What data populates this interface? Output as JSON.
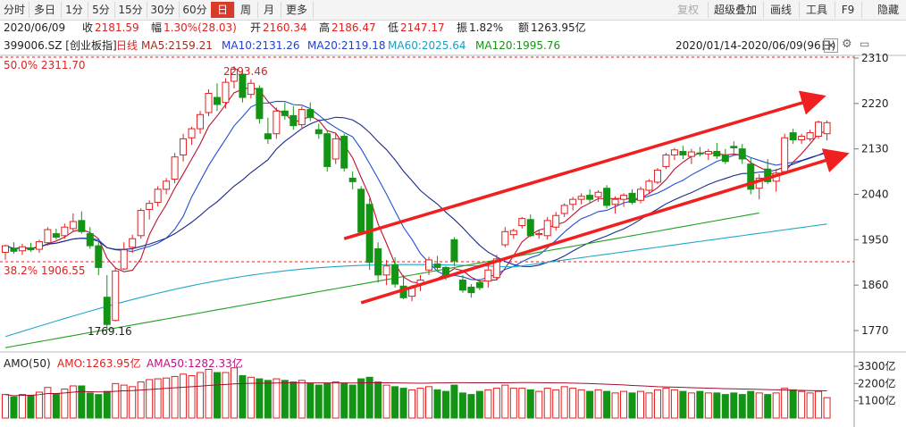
{
  "toolbar": {
    "left": [
      "分时",
      "多日",
      "1分",
      "5分",
      "15分",
      "30分",
      "60分",
      "日",
      "周",
      "月",
      "更多"
    ],
    "active": "日",
    "right": [
      "复权",
      "超级叠加",
      "画线",
      "工具",
      "F9",
      "隐藏"
    ]
  },
  "quote": {
    "date": "2020/06/09",
    "close_label": "收",
    "close": "2181.59",
    "change_label": "幅",
    "change": "1.30%(28.03)",
    "open_label": "开",
    "open": "2160.34",
    "high_label": "高",
    "high": "2186.47",
    "low_label": "低",
    "low": "2147.17",
    "swing_label": "振",
    "swing": "1.82%",
    "amount_label": "额",
    "amount": "1263.95亿"
  },
  "indicators": {
    "code": "399006.SZ [创业板指]",
    "period": "日线",
    "ma5": "MA5:2159.21",
    "ma10": "MA10:2131.26",
    "ma20": "MA20:2119.18",
    "ma60": "MA60:2025.64",
    "ma120": "MA120:1995.76",
    "range": "2020/01/14-2020/06/09(96日)"
  },
  "annotations": {
    "fib50": "50.0%  2311.70",
    "fib382": "38.2%  1906.55",
    "high_label": "2293.46",
    "low_label": "1769.16"
  },
  "volume_panel": {
    "title": "AMO(50)",
    "amo": "AMO:1263.95亿",
    "ama": "AMA50:1282.33亿",
    "ticks": [
      "3300亿",
      "2200亿",
      "1100亿"
    ]
  },
  "colors": {
    "up": "#e02020",
    "down": "#149414",
    "ma5": "#c01030",
    "ma10": "#2050d0",
    "ma20": "#1a2a8a",
    "ma60": "#20a8c8",
    "ma120": "#20a020",
    "channel": "#f02020"
  },
  "chart_data": {
    "type": "candlestick",
    "y_ticks": [
      2310,
      2220,
      2130,
      2040,
      1950,
      1860,
      1770
    ],
    "candles": [
      {
        "o": 1925,
        "h": 1940,
        "l": 1910,
        "c": 1938
      },
      {
        "o": 1932,
        "h": 1945,
        "l": 1922,
        "c": 1927
      },
      {
        "o": 1928,
        "h": 1942,
        "l": 1920,
        "c": 1936
      },
      {
        "o": 1934,
        "h": 1944,
        "l": 1926,
        "c": 1930
      },
      {
        "o": 1931,
        "h": 1950,
        "l": 1924,
        "c": 1946
      },
      {
        "o": 1944,
        "h": 1975,
        "l": 1938,
        "c": 1970
      },
      {
        "o": 1962,
        "h": 1972,
        "l": 1950,
        "c": 1955
      },
      {
        "o": 1958,
        "h": 1982,
        "l": 1952,
        "c": 1975
      },
      {
        "o": 1972,
        "h": 2002,
        "l": 1966,
        "c": 1986
      },
      {
        "o": 1988,
        "h": 2006,
        "l": 1962,
        "c": 1966
      },
      {
        "o": 1962,
        "h": 1975,
        "l": 1932,
        "c": 1938
      },
      {
        "o": 1938,
        "h": 1946,
        "l": 1880,
        "c": 1895
      },
      {
        "o": 1836,
        "h": 1880,
        "l": 1772,
        "c": 1782
      },
      {
        "o": 1790,
        "h": 1896,
        "l": 1788,
        "c": 1888
      },
      {
        "o": 1892,
        "h": 1945,
        "l": 1890,
        "c": 1930
      },
      {
        "o": 1935,
        "h": 1960,
        "l": 1924,
        "c": 1952
      },
      {
        "o": 1958,
        "h": 2012,
        "l": 1952,
        "c": 2008
      },
      {
        "o": 2010,
        "h": 2028,
        "l": 1990,
        "c": 2022
      },
      {
        "o": 2024,
        "h": 2056,
        "l": 2016,
        "c": 2050
      },
      {
        "o": 2050,
        "h": 2072,
        "l": 2040,
        "c": 2066
      },
      {
        "o": 2070,
        "h": 2122,
        "l": 2062,
        "c": 2114
      },
      {
        "o": 2118,
        "h": 2160,
        "l": 2105,
        "c": 2150
      },
      {
        "o": 2152,
        "h": 2174,
        "l": 2138,
        "c": 2170
      },
      {
        "o": 2170,
        "h": 2205,
        "l": 2160,
        "c": 2198
      },
      {
        "o": 2202,
        "h": 2248,
        "l": 2195,
        "c": 2240
      },
      {
        "o": 2232,
        "h": 2260,
        "l": 2205,
        "c": 2218
      },
      {
        "o": 2222,
        "h": 2270,
        "l": 2210,
        "c": 2262
      },
      {
        "o": 2264,
        "h": 2294,
        "l": 2250,
        "c": 2288
      },
      {
        "o": 2278,
        "h": 2288,
        "l": 2222,
        "c": 2232
      },
      {
        "o": 2238,
        "h": 2268,
        "l": 2230,
        "c": 2260
      },
      {
        "o": 2250,
        "h": 2256,
        "l": 2180,
        "c": 2190
      },
      {
        "o": 2160,
        "h": 2192,
        "l": 2140,
        "c": 2150
      },
      {
        "o": 2160,
        "h": 2212,
        "l": 2150,
        "c": 2205
      },
      {
        "o": 2205,
        "h": 2222,
        "l": 2188,
        "c": 2196
      },
      {
        "o": 2196,
        "h": 2215,
        "l": 2168,
        "c": 2176
      },
      {
        "o": 2178,
        "h": 2214,
        "l": 2172,
        "c": 2208
      },
      {
        "o": 2208,
        "h": 2222,
        "l": 2185,
        "c": 2192
      },
      {
        "o": 2168,
        "h": 2180,
        "l": 2150,
        "c": 2160
      },
      {
        "o": 2160,
        "h": 2166,
        "l": 2085,
        "c": 2095
      },
      {
        "o": 2110,
        "h": 2160,
        "l": 2100,
        "c": 2150
      },
      {
        "o": 2155,
        "h": 2160,
        "l": 2085,
        "c": 2092
      },
      {
        "o": 2072,
        "h": 2085,
        "l": 2050,
        "c": 2065
      },
      {
        "o": 2050,
        "h": 2056,
        "l": 1960,
        "c": 1965
      },
      {
        "o": 2020,
        "h": 2032,
        "l": 1890,
        "c": 1905
      },
      {
        "o": 1932,
        "h": 1945,
        "l": 1865,
        "c": 1880
      },
      {
        "o": 1880,
        "h": 1910,
        "l": 1860,
        "c": 1898
      },
      {
        "o": 1900,
        "h": 1915,
        "l": 1855,
        "c": 1862
      },
      {
        "o": 1858,
        "h": 1880,
        "l": 1832,
        "c": 1835
      },
      {
        "o": 1838,
        "h": 1860,
        "l": 1828,
        "c": 1855
      },
      {
        "o": 1862,
        "h": 1880,
        "l": 1848,
        "c": 1870
      },
      {
        "o": 1890,
        "h": 1916,
        "l": 1880,
        "c": 1910
      },
      {
        "o": 1902,
        "h": 1918,
        "l": 1890,
        "c": 1895
      },
      {
        "o": 1895,
        "h": 1898,
        "l": 1870,
        "c": 1880
      },
      {
        "o": 1950,
        "h": 1955,
        "l": 1898,
        "c": 1908
      },
      {
        "o": 1870,
        "h": 1880,
        "l": 1845,
        "c": 1850
      },
      {
        "o": 1856,
        "h": 1862,
        "l": 1835,
        "c": 1845
      },
      {
        "o": 1865,
        "h": 1872,
        "l": 1850,
        "c": 1855
      },
      {
        "o": 1868,
        "h": 1900,
        "l": 1855,
        "c": 1890
      },
      {
        "o": 1875,
        "h": 1920,
        "l": 1870,
        "c": 1912
      },
      {
        "o": 1940,
        "h": 1975,
        "l": 1935,
        "c": 1966
      },
      {
        "o": 1960,
        "h": 1972,
        "l": 1952,
        "c": 1968
      },
      {
        "o": 1978,
        "h": 1995,
        "l": 1972,
        "c": 1992
      },
      {
        "o": 1990,
        "h": 2000,
        "l": 1955,
        "c": 1958
      },
      {
        "o": 1960,
        "h": 1968,
        "l": 1952,
        "c": 1962
      },
      {
        "o": 1958,
        "h": 1995,
        "l": 1950,
        "c": 1988
      },
      {
        "o": 1975,
        "h": 2005,
        "l": 1968,
        "c": 1998
      },
      {
        "o": 2002,
        "h": 2022,
        "l": 1995,
        "c": 2018
      },
      {
        "o": 2020,
        "h": 2035,
        "l": 2008,
        "c": 2030
      },
      {
        "o": 2030,
        "h": 2042,
        "l": 2020,
        "c": 2036
      },
      {
        "o": 2038,
        "h": 2050,
        "l": 2022,
        "c": 2030
      },
      {
        "o": 2035,
        "h": 2048,
        "l": 2025,
        "c": 2044
      },
      {
        "o": 2052,
        "h": 2058,
        "l": 2012,
        "c": 2018
      },
      {
        "o": 2020,
        "h": 2036,
        "l": 2002,
        "c": 2030
      },
      {
        "o": 2030,
        "h": 2042,
        "l": 2015,
        "c": 2038
      },
      {
        "o": 2042,
        "h": 2050,
        "l": 2020,
        "c": 2024
      },
      {
        "o": 2028,
        "h": 2055,
        "l": 2022,
        "c": 2050
      },
      {
        "o": 2048,
        "h": 2070,
        "l": 2042,
        "c": 2066
      },
      {
        "o": 2064,
        "h": 2092,
        "l": 2060,
        "c": 2088
      },
      {
        "o": 2095,
        "h": 2122,
        "l": 2090,
        "c": 2118
      },
      {
        "o": 2118,
        "h": 2132,
        "l": 2108,
        "c": 2128
      },
      {
        "o": 2125,
        "h": 2136,
        "l": 2110,
        "c": 2118
      },
      {
        "o": 2115,
        "h": 2130,
        "l": 2100,
        "c": 2124
      },
      {
        "o": 2122,
        "h": 2134,
        "l": 2115,
        "c": 2120
      },
      {
        "o": 2120,
        "h": 2130,
        "l": 2108,
        "c": 2125
      },
      {
        "o": 2125,
        "h": 2142,
        "l": 2110,
        "c": 2116
      },
      {
        "o": 2118,
        "h": 2130,
        "l": 2100,
        "c": 2105
      },
      {
        "o": 2135,
        "h": 2145,
        "l": 2120,
        "c": 2132
      },
      {
        "o": 2130,
        "h": 2140,
        "l": 2100,
        "c": 2110
      },
      {
        "o": 2100,
        "h": 2112,
        "l": 2040,
        "c": 2050
      },
      {
        "o": 2052,
        "h": 2080,
        "l": 2030,
        "c": 2072
      },
      {
        "o": 2090,
        "h": 2110,
        "l": 2060,
        "c": 2065
      },
      {
        "o": 2066,
        "h": 2090,
        "l": 2045,
        "c": 2082
      },
      {
        "o": 2085,
        "h": 2160,
        "l": 2080,
        "c": 2152
      },
      {
        "o": 2162,
        "h": 2170,
        "l": 2140,
        "c": 2148
      },
      {
        "o": 2148,
        "h": 2160,
        "l": 2140,
        "c": 2155
      },
      {
        "o": 2150,
        "h": 2168,
        "l": 2145,
        "c": 2162
      },
      {
        "o": 2155,
        "h": 2186,
        "l": 2150,
        "c": 2183
      },
      {
        "o": 2160,
        "h": 2186,
        "l": 2147,
        "c": 2182
      }
    ],
    "volume": [
      1500,
      1350,
      1500,
      1450,
      1650,
      1950,
      1550,
      1850,
      2050,
      2050,
      1600,
      1500,
      1700,
      2200,
      2100,
      2000,
      2300,
      2450,
      2500,
      2550,
      2650,
      2800,
      2700,
      2900,
      3100,
      2900,
      2900,
      3200,
      2700,
      2600,
      2500,
      2400,
      2500,
      2400,
      2300,
      2400,
      2200,
      2100,
      2200,
      2300,
      2200,
      2100,
      2500,
      2600,
      2300,
      2100,
      2000,
      1900,
      1800,
      1900,
      2000,
      1800,
      1700,
      2100,
      1600,
      1500,
      1700,
      1800,
      1900,
      2100,
      1900,
      1900,
      1800,
      1700,
      1900,
      1800,
      2000,
      1900,
      1800,
      1700,
      1800,
      1700,
      1600,
      1700,
      1600,
      1700,
      1600,
      1800,
      1900,
      1800,
      1700,
      1600,
      1700,
      1600,
      1600,
      1500,
      1600,
      1500,
      1700,
      1600,
      1500,
      1600,
      1900,
      1800,
      1700,
      1600,
      1700,
      1300
    ]
  }
}
